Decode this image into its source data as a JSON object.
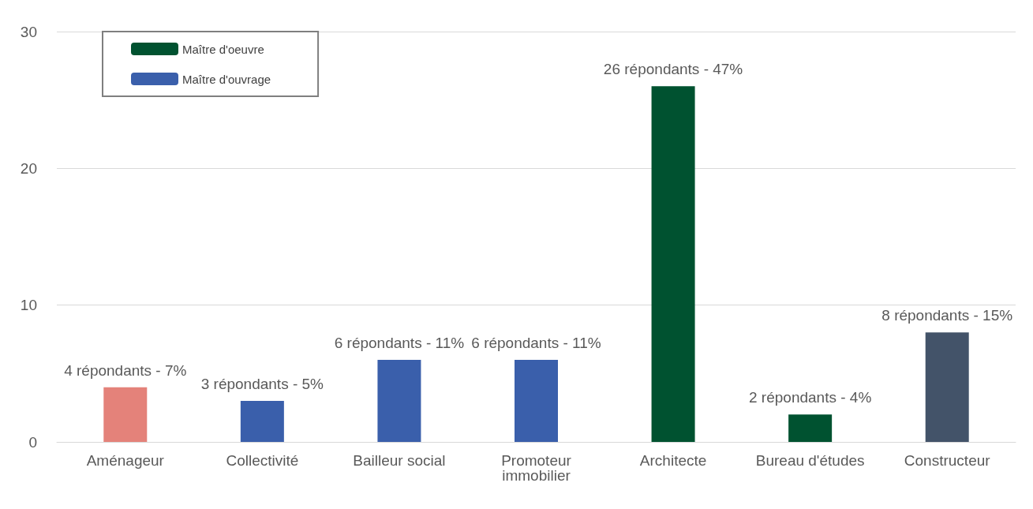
{
  "chart_data": {
    "type": "bar",
    "categories": [
      "Aménageur",
      "Collectivité",
      "Bailleur social",
      "Promoteur immobilier",
      "Architecte",
      "Bureau d'études",
      "Constructeur"
    ],
    "series": [
      {
        "name": "Maître d'oeuvre",
        "color": "#005230",
        "values": [
          null,
          null,
          null,
          null,
          26,
          2,
          8
        ],
        "colors": [
          null,
          null,
          null,
          null,
          "#005230",
          "#005230",
          "#435369"
        ],
        "value_labels": [
          null,
          null,
          null,
          null,
          "26 répondants - 47%",
          "2 répondants - 4%",
          "8 répondants - 15%"
        ]
      },
      {
        "name": "Maître d'ouvrage",
        "color": "#3a5fab",
        "values": [
          4,
          3,
          6,
          6,
          null,
          null,
          null
        ],
        "colors": [
          "#e4827a",
          "#3a5fab",
          "#3a5fab",
          "#3a5fab",
          null,
          null,
          null
        ],
        "value_labels": [
          "4 répondants - 7%",
          "3 répondants - 5%",
          "6 répondants - 11%",
          "6 répondants - 11%",
          null,
          null,
          null
        ]
      }
    ],
    "ylim": [
      0,
      30
    ],
    "yticks": [
      0,
      10,
      20,
      30
    ],
    "grid": "y",
    "legend": "top left"
  }
}
